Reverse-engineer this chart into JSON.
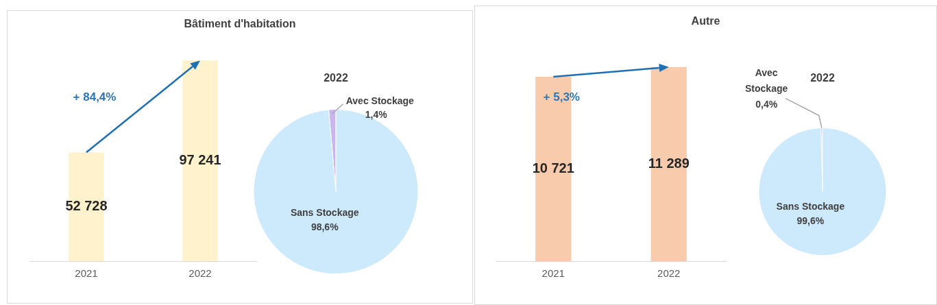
{
  "chart_data": [
    {
      "type": "bar",
      "title": "Bâtiment d'habitation",
      "categories": [
        "2021",
        "2022"
      ],
      "values": [
        52728,
        97241
      ],
      "value_labels": [
        "52 728",
        "97 241"
      ],
      "color": "#fff2cc",
      "tick_labels": "x",
      "annotations": [
        "+ 84,4%"
      ]
    },
    {
      "type": "pie",
      "title": "2022",
      "categories": [
        "Avec Stockage",
        "Sans Stockage"
      ],
      "values": [
        1.4,
        98.6
      ],
      "value_labels": [
        "1,4%",
        "98,6%"
      ],
      "colors": [
        "#c9b6ee",
        "#cdeafc"
      ]
    },
    {
      "type": "bar",
      "title": "Autre",
      "categories": [
        "2021",
        "2022"
      ],
      "values": [
        10721,
        11289
      ],
      "value_labels": [
        "10 721",
        "11 289"
      ],
      "color": "#f8cbad",
      "tick_labels": "x",
      "annotations": [
        "+ 5,3%"
      ]
    },
    {
      "type": "pie",
      "title": "2022",
      "categories": [
        "Avec Stockage",
        "Sans Stockage"
      ],
      "values": [
        0.4,
        99.6
      ],
      "value_labels": [
        "0,4%",
        "99,6%"
      ],
      "colors": [
        "#c9b6ee",
        "#cdeafc"
      ]
    }
  ]
}
